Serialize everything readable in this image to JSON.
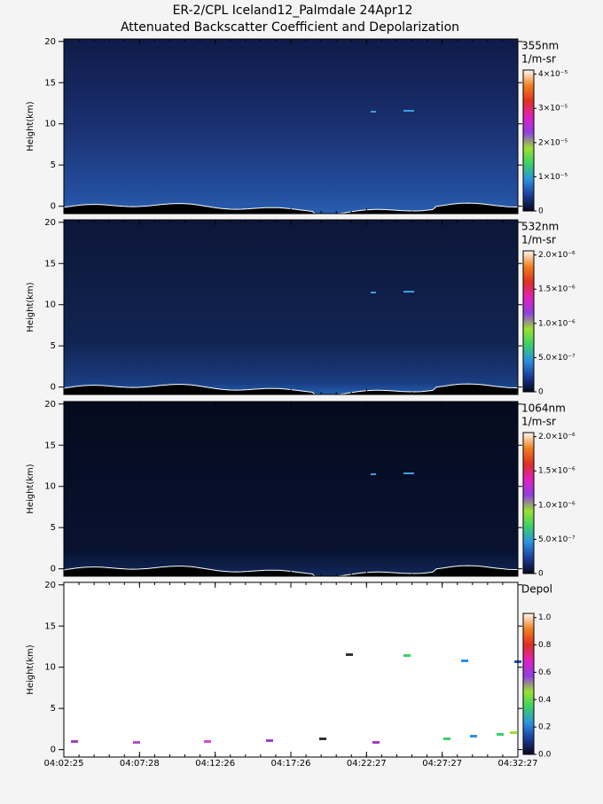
{
  "title": "ER-2/CPL Iceland12_Palmdale 24Apr12",
  "subtitle": "Attenuated Backscatter Coefficient and Depolarization",
  "chart_data": [
    {
      "type": "heatmap",
      "y_label": "Height(km)",
      "ylim": [
        -0.9,
        20.3
      ],
      "yticks": [
        0,
        5,
        10,
        15,
        20
      ],
      "colorbar_label": "355nm",
      "colorbar_units": "1/m-sr",
      "clim": [
        0,
        4.12e-05
      ],
      "cticks": [
        0,
        {
          "value": 1e-05,
          "label": "1×10⁻⁵"
        },
        {
          "value": 2e-05,
          "label": "2×10⁻⁵"
        },
        {
          "value": 3e-05,
          "label": "3×10⁻⁵"
        },
        {
          "value": 4e-05,
          "label": "4×10⁻⁵"
        }
      ],
      "colormap": [
        "#06081a",
        "#1c3c9c",
        "#2f8fe0",
        "#3ad06a",
        "#9be030",
        "#9040e0",
        "#e020c0",
        "#e03020",
        "#f08020",
        "#fff8f0"
      ]
    },
    {
      "type": "heatmap",
      "y_label": "Height(km)",
      "ylim": [
        -0.9,
        20.3
      ],
      "yticks": [
        0,
        5,
        10,
        15,
        20
      ],
      "colorbar_label": "532nm",
      "colorbar_units": "1/m-sr",
      "clim": [
        0,
        2.06e-06
      ],
      "cticks": [
        0,
        {
          "value": 5e-07,
          "label": "5.0×10⁻⁷"
        },
        {
          "value": 1e-06,
          "label": "1.0×10⁻⁶"
        },
        {
          "value": 1.5e-06,
          "label": "1.5×10⁻⁶"
        },
        {
          "value": 2e-06,
          "label": "2.0×10⁻⁶"
        }
      ],
      "colormap": [
        "#06081a",
        "#1c3c9c",
        "#2f8fe0",
        "#3ad06a",
        "#9be030",
        "#9040e0",
        "#e020c0",
        "#e03020",
        "#f08020",
        "#fff8f0"
      ]
    },
    {
      "type": "heatmap",
      "y_label": "Height(km)",
      "ylim": [
        -0.9,
        20.3
      ],
      "yticks": [
        0,
        5,
        10,
        15,
        20
      ],
      "colorbar_label": "1064nm",
      "colorbar_units": "1/m-sr",
      "clim": [
        0,
        2.06e-06
      ],
      "cticks": [
        0,
        {
          "value": 5e-07,
          "label": "5.0×10⁻⁷"
        },
        {
          "value": 1e-06,
          "label": "1.0×10⁻⁶"
        },
        {
          "value": 1.5e-06,
          "label": "1.5×10⁻⁶"
        },
        {
          "value": 2e-06,
          "label": "2.0×10⁻⁶"
        }
      ],
      "colormap": [
        "#06081a",
        "#1c3c9c",
        "#2f8fe0",
        "#3ad06a",
        "#9be030",
        "#9040e0",
        "#e020c0",
        "#e03020",
        "#f08020",
        "#fff8f0"
      ]
    },
    {
      "type": "heatmap",
      "y_label": "Height(km)",
      "ylim": [
        -0.9,
        20.3
      ],
      "yticks": [
        0,
        5,
        10,
        15,
        20
      ],
      "colorbar_label": "Depol",
      "clim": [
        0,
        1.03
      ],
      "cticks": [
        {
          "value": 0,
          "label": "0.0"
        },
        0.2,
        0.4,
        0.6,
        0.8,
        {
          "value": 1,
          "label": "1.0"
        }
      ],
      "colormap": [
        "#06081a",
        "#1c3c9c",
        "#2f8fe0",
        "#3ad06a",
        "#9be030",
        "#9040e0",
        "#e020c0",
        "#e03020",
        "#f08020",
        "#fff8f0"
      ],
      "categories": [
        "04:02:25",
        "04:07:28",
        "04:12:26",
        "04:17:26",
        "04:22:27",
        "04:27:27",
        "04:32:27"
      ]
    }
  ]
}
